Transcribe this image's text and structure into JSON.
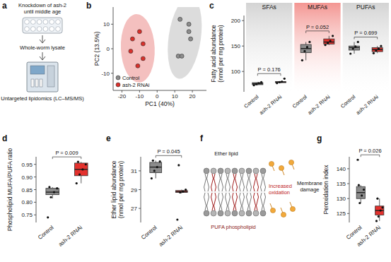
{
  "chart_data": [
    {
      "label": "b",
      "type": "scatter",
      "xlabel": "PC1 (40%)",
      "ylabel": "PC2 (13.5%)",
      "xlim": [
        -25,
        28
      ],
      "ylim": [
        -17,
        17
      ],
      "xticks": [
        -20,
        -10,
        0,
        10,
        20
      ],
      "yticks": [
        -10,
        0,
        10
      ],
      "legend": "lower left",
      "series": [
        {
          "name": "Control",
          "color": "#8c8c8c",
          "x": [
            13,
            18,
            18,
            19,
            12,
            14
          ],
          "values": [
            12,
            10,
            7,
            4,
            -3,
            -3
          ]
        },
        {
          "name": "ash-2 RNAi",
          "color": "#d9302b",
          "x": [
            -10,
            -14,
            -8,
            -15,
            -8,
            -11
          ],
          "values": [
            7,
            4,
            2,
            -1,
            -4,
            -7
          ]
        }
      ]
    },
    {
      "label": "c",
      "type": "box",
      "categories": [
        "Control",
        "ash-2 RNAi"
      ],
      "ylabel": [
        "Fatty acid abundance",
        "(nmol per mg protein)"
      ],
      "ylim": [
        60,
        210
      ],
      "yticks": [
        100,
        150,
        200
      ],
      "facets": [
        {
          "title": "SFAs",
          "color": "#cfcfcf",
          "p_label": "P = 0.176",
          "series": [
            {
              "name": "Control",
              "color": "#8c8c8c",
              "min": 73,
              "q1": 74,
              "median": 76,
              "q3": 78,
              "max": 79,
              "points": [
                73,
                75,
                77,
                79
              ]
            },
            {
              "name": "ash-2 RNAi",
              "color": "#e3312d",
              "min": 77,
              "q1": 78,
              "median": 79,
              "q3": 80,
              "max": 81,
              "points": [
                77,
                79,
                80,
                86
              ]
            }
          ]
        },
        {
          "title": "MUFAs",
          "color": "#f28a86",
          "p_label": "P = 0.052",
          "series": [
            {
              "name": "Control",
              "color": "#8c8c8c",
              "min": 122,
              "q1": 137,
              "median": 145,
              "q3": 153,
              "max": 158,
              "points": [
                122,
                140,
                148,
                158
              ]
            },
            {
              "name": "ash-2 RNAi",
              "color": "#e3312d",
              "min": 152,
              "q1": 154,
              "median": 158,
              "q3": 164,
              "max": 170,
              "points": [
                152,
                156,
                160,
                170
              ]
            }
          ]
        },
        {
          "title": "PUFAs",
          "color": "#cfcfcf",
          "p_label": "P = 0.699",
          "series": [
            {
              "name": "Control",
              "color": "#8c8c8c",
              "min": 135,
              "q1": 142,
              "median": 147,
              "q3": 150,
              "max": 158,
              "points": [
                135,
                145,
                149,
                158
              ]
            },
            {
              "name": "ash-2 RNAi",
              "color": "#e3312d",
              "min": 136,
              "q1": 139,
              "median": 143,
              "q3": 147,
              "max": 150,
              "points": [
                136,
                141,
                145,
                150
              ]
            }
          ]
        }
      ]
    },
    {
      "label": "d",
      "type": "box",
      "categories": [
        "Control",
        "ash-2 RNAi"
      ],
      "ylabel": [
        "Phospholipid MUFA/PUFA ratio"
      ],
      "ylim": [
        0.72,
        0.98
      ],
      "yticks": [
        0.75,
        {
          "value": 0.8,
          "label": "0.80"
        },
        0.85,
        {
          "value": 0.9,
          "label": "0.90"
        },
        0.95
      ],
      "p_label": "P = 0.009",
      "series": [
        {
          "name": "Control",
          "color": "#8c8c8c",
          "min": 0.815,
          "q1": 0.83,
          "median": 0.84,
          "q3": 0.855,
          "max": 0.86,
          "points": [
            0.74,
            0.82,
            0.84,
            0.855,
            0.86
          ]
        },
        {
          "name": "ash-2 RNAi",
          "color": "#e3312d",
          "min": 0.875,
          "q1": 0.905,
          "median": 0.93,
          "q3": 0.955,
          "max": 0.96,
          "points": [
            0.875,
            0.91,
            0.93,
            0.95,
            0.96
          ]
        }
      ]
    },
    {
      "label": "e",
      "type": "box",
      "categories": [
        "Control",
        "ash-2 RNAi"
      ],
      "ylabel": [
        "Ether lipid abundance",
        "(nmol per mg protein)"
      ],
      "ylim": [
        25.5,
        32.5
      ],
      "yticks": [
        27,
        29,
        31
      ],
      "p_label": "P = 0.045",
      "series": [
        {
          "name": "Control",
          "color": "#8c8c8c",
          "min": 30.2,
          "q1": 30.8,
          "median": 31.4,
          "q3": 31.9,
          "max": 32.1,
          "points": [
            30.2,
            31,
            31.4,
            32,
            32.1
          ]
        },
        {
          "name": "ash-2 RNAi",
          "color": "#e3312d",
          "min": 28.6,
          "q1": 28.7,
          "median": 28.8,
          "q3": 28.9,
          "max": 29,
          "points": [
            25.8,
            28.7,
            28.8,
            29,
            31.6
          ]
        }
      ]
    },
    {
      "label": "g",
      "type": "box",
      "categories": [
        "Control",
        "ash-2 RNAi"
      ],
      "ylabel": [
        "Peroxidation index"
      ],
      "ylim": [
        122,
        144
      ],
      "yticks": [
        125,
        130,
        135,
        140
      ],
      "p_label": "P = 0.026",
      "series": [
        {
          "name": "Control",
          "color": "#8c8c8c",
          "min": 128.5,
          "q1": 130,
          "median": 132,
          "q3": 134,
          "max": 134.5,
          "points": [
            143,
            128.5,
            131,
            133,
            134.5
          ]
        },
        {
          "name": "ash-2 RNAi",
          "color": "#e3312d",
          "min": 122.5,
          "q1": 124.5,
          "median": 126,
          "q3": 127.5,
          "max": 130,
          "points": [
            122.5,
            124,
            126,
            127,
            130
          ]
        }
      ]
    }
  ],
  "diagrams": {
    "a": {
      "label": "a",
      "knockdown": [
        "Knockdown of ash-2",
        "until middle age"
      ],
      "lysate": "Whole-worm lysate",
      "method": "Untargeted lipidomics (LC–MS/MS)"
    },
    "f": {
      "label": "f",
      "ether": "Ether lipid",
      "pufa": "PUFA phospholipid",
      "oxidation": [
        "Increased",
        "oxidation"
      ],
      "damage": [
        "Membrane",
        "damage"
      ]
    }
  }
}
